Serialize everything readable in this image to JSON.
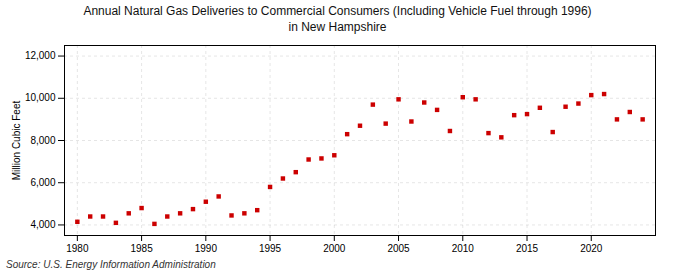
{
  "chart_data": {
    "type": "scatter",
    "title": "Annual Natural Gas Deliveries to Commercial Consumers (Including Vehicle Fuel through 1996)\nin New Hampshire",
    "ylabel": "Million Cubic Feet",
    "source": "Source: U.S. Energy Information Administration",
    "x": [
      1980,
      1981,
      1982,
      1983,
      1984,
      1985,
      1986,
      1987,
      1988,
      1989,
      1990,
      1991,
      1992,
      1993,
      1994,
      1995,
      1996,
      1997,
      1998,
      1999,
      2000,
      2001,
      2002,
      2003,
      2004,
      2005,
      2006,
      2007,
      2008,
      2009,
      2010,
      2011,
      2012,
      2013,
      2014,
      2015,
      2016,
      2017,
      2018,
      2019,
      2020,
      2021,
      2022,
      2023,
      2024
    ],
    "values": [
      4150,
      4400,
      4400,
      4100,
      4550,
      4800,
      4050,
      4400,
      4550,
      4750,
      5100,
      5350,
      4450,
      4550,
      4700,
      5800,
      6200,
      6500,
      7100,
      7150,
      7300,
      8300,
      8700,
      9700,
      8800,
      9950,
      8900,
      9800,
      9450,
      8450,
      10050,
      9950,
      8350,
      8150,
      9200,
      9250,
      9550,
      8400,
      9600,
      9750,
      10150,
      10200,
      9000,
      9350,
      9000
    ],
    "color": "#cc0000",
    "marker": "square",
    "xlim": [
      1979,
      2025
    ],
    "xticks": [
      1980,
      1985,
      1990,
      1995,
      2000,
      2005,
      2010,
      2015,
      2020
    ],
    "ylim": [
      3500,
      12500
    ],
    "yticks": [
      {
        "value": 4000,
        "label": "4,000"
      },
      {
        "value": 6000,
        "label": "6,000"
      },
      {
        "value": 8000,
        "label": "8,000"
      },
      {
        "value": 10000,
        "label": "10,000"
      },
      {
        "value": 12000,
        "label": "12,000"
      }
    ],
    "grid": true
  }
}
